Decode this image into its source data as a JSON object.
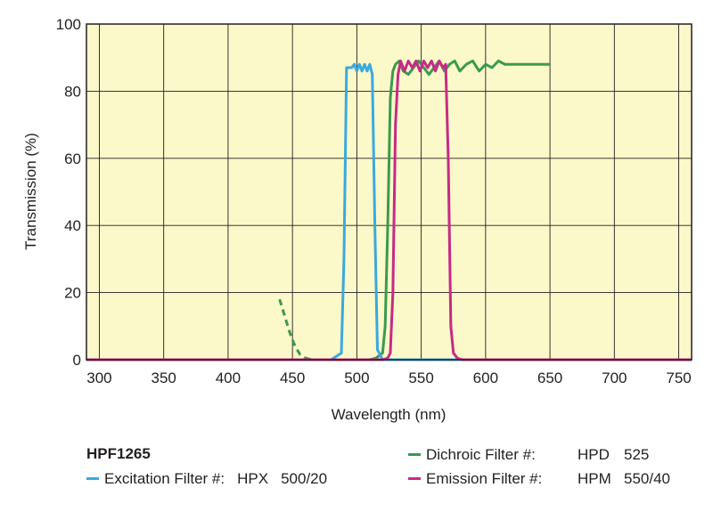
{
  "chart_data": {
    "type": "line",
    "xlabel": "Wavelength (nm)",
    "ylabel": "Transmission (%)",
    "xlim": [
      290,
      760
    ],
    "ylim": [
      0,
      100
    ],
    "xticks": [
      300,
      350,
      400,
      450,
      500,
      550,
      600,
      650,
      700,
      750
    ],
    "yticks": [
      0,
      20,
      40,
      60,
      80,
      100
    ],
    "grid": true,
    "background": "#fbf8c9",
    "model": "HPF1265",
    "series": [
      {
        "name": "Excitation Filter #:",
        "part_label": "HPX",
        "part_value": "500/20",
        "color": "#3aa9df",
        "x": [
          290,
          480,
          488,
          490,
          492,
          496,
          498,
          500,
          502,
          504,
          506,
          508,
          510,
          512,
          514,
          516,
          520,
          760
        ],
        "y": [
          0,
          0,
          2,
          30,
          87,
          87,
          88,
          86,
          88,
          86,
          88,
          86,
          88,
          85,
          40,
          3,
          0,
          0
        ]
      },
      {
        "name": "Dichroic Filter #:",
        "part_label": "HPD",
        "part_value": "525",
        "color": "#3b9a4f",
        "x": [
          440,
          444,
          448,
          452,
          456,
          460,
          465,
          470,
          475,
          480,
          490,
          500,
          510,
          515,
          520,
          522,
          524,
          526,
          528,
          530,
          533,
          536,
          540,
          544,
          548,
          552,
          556,
          560,
          564,
          568,
          572,
          576,
          580,
          585,
          590,
          595,
          600,
          605,
          610,
          615,
          620,
          630,
          640,
          650
        ],
        "y": [
          18,
          13,
          8,
          4,
          1.5,
          0.5,
          0,
          0,
          0,
          0,
          0,
          0,
          0,
          0.5,
          2,
          10,
          40,
          78,
          86,
          88,
          89,
          86,
          85,
          87,
          89,
          87,
          85,
          87,
          89,
          86,
          88,
          89,
          86,
          88,
          89,
          86,
          88,
          87,
          89,
          88,
          88,
          88,
          88,
          88
        ],
        "dashed_until": 460
      },
      {
        "name": "Emission Filter #:",
        "part_label": "HPM",
        "part_value": "550/40",
        "color": "#c62b87",
        "x": [
          290,
          520,
          524,
          526,
          528,
          530,
          532,
          534,
          537,
          540,
          543,
          546,
          549,
          552,
          555,
          558,
          561,
          564,
          567,
          569,
          571,
          573,
          575,
          578,
          582,
          760
        ],
        "y": [
          0,
          0,
          0.5,
          2,
          20,
          70,
          85,
          89,
          86,
          89,
          87,
          89,
          86,
          89,
          87,
          89,
          86,
          89,
          87,
          88,
          60,
          10,
          2,
          0.5,
          0,
          0
        ]
      }
    ]
  }
}
